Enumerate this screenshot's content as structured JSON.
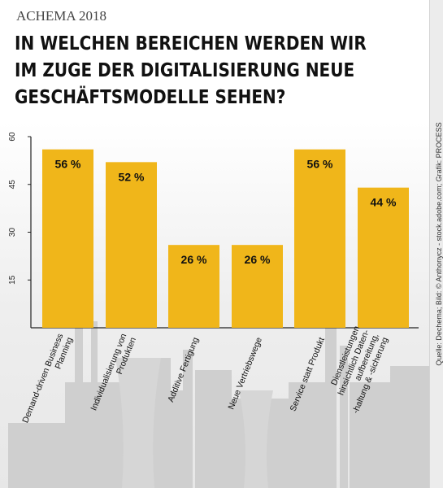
{
  "header": {
    "kicker": "ACHEMA 2018",
    "title_lines": [
      "IN WELCHEN BEREICHEN WERDEN WIR",
      "IM ZUGE DER DIGITALISIERUNG NEUE",
      "GESCHÄFTSMODELLE SEHEN?"
    ]
  },
  "source": "Quelle: Dechema; Bild: © Anthonycz - stock.adobe.com; Grafik: PROCESS",
  "colors": {
    "bar": "#f0b61a",
    "axis": "#222222",
    "background_illustration": "#cfcfcf"
  },
  "background_icon": "industrial-skyline-illustration",
  "chart_data": {
    "type": "bar",
    "categories": [
      [
        "Demand-driven Business",
        "Planning"
      ],
      [
        "Individualisierung von",
        "Produkten"
      ],
      [
        "Additive Fertigung"
      ],
      [
        "Neue Vertriebswege"
      ],
      [
        "Service statt Produkt"
      ],
      [
        "Dienstleistungen",
        "hinsichtlich Daten-",
        "aufbereitung,",
        "-haltung & -sicherung"
      ]
    ],
    "values": [
      56,
      52,
      26,
      26,
      56,
      44
    ],
    "value_labels": [
      "56 %",
      "52 %",
      "26 %",
      "26 %",
      "56 %",
      "44 %"
    ],
    "yticks": [
      15,
      30,
      45,
      60
    ],
    "ylim": [
      0,
      60
    ],
    "title": "",
    "xlabel": "",
    "ylabel": "",
    "grid": false
  }
}
